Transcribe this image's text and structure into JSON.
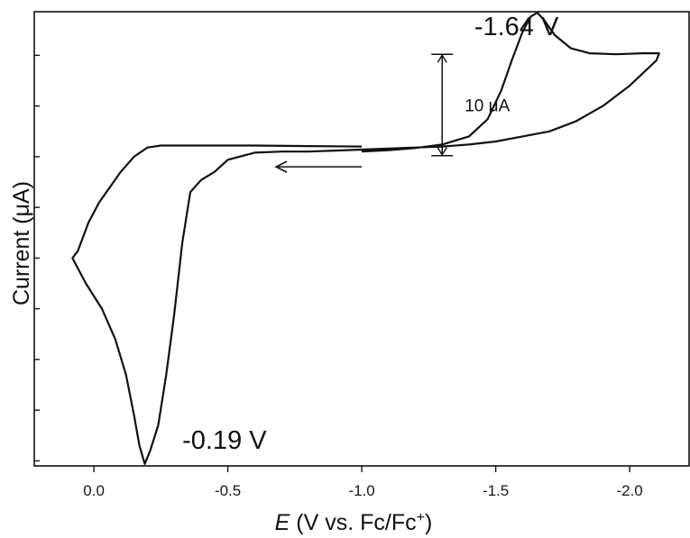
{
  "chart_data": {
    "type": "line",
    "title": "",
    "xlabel_italic": "E",
    "xlabel_rest": " (V vs. Fc/Fc",
    "xlabel_sup": "+",
    "xlabel_close": ")",
    "ylabel": "Current (μA)",
    "x_reversed": true,
    "xlim": [
      0.2225,
      -2.2218
    ],
    "ylim": [
      -23.0,
      21.8
    ],
    "grid": false,
    "x_ticks": [
      {
        "value": 0.0,
        "label": "0.0"
      },
      {
        "value": -0.5,
        "label": "-0.5"
      },
      {
        "value": -1.0,
        "label": "-1.0"
      },
      {
        "value": -1.5,
        "label": "-1.5"
      },
      {
        "value": -2.0,
        "label": "-2.0"
      }
    ],
    "y_ticks_unlabeled": [
      17.5,
      12.5,
      7.5,
      2.5,
      -2.5,
      -7.5,
      -12.5,
      -17.5,
      -22.5
    ],
    "series": [
      {
        "name": "",
        "color": "#111111",
        "x": [
          -1.0,
          -1.1,
          -1.2,
          -1.3,
          -1.4,
          -1.47,
          -1.52,
          -1.56,
          -1.6,
          -1.63,
          -1.655,
          -1.68,
          -1.72,
          -1.78,
          -1.85,
          -1.95,
          -2.05,
          -2.11,
          -2.1,
          -2.0,
          -1.9,
          -1.8,
          -1.7,
          -1.6,
          -1.5,
          -1.4,
          -1.3,
          -1.2,
          -1.1,
          -1.0,
          -0.9,
          -0.8,
          -0.7,
          -0.6,
          -0.5,
          -0.45,
          -0.4,
          -0.36,
          -0.33,
          -0.3,
          -0.27,
          -0.24,
          -0.21,
          -0.19,
          -0.17,
          -0.15,
          -0.12,
          -0.08,
          -0.03,
          0.03,
          0.08,
          0.06,
          0.02,
          -0.02,
          -0.06,
          -0.1,
          -0.15,
          -0.2,
          -0.25,
          -0.3,
          -0.35,
          -0.4,
          -0.5,
          -0.6,
          -0.8,
          -1.0
        ],
        "y": [
          8.0,
          8.15,
          8.35,
          8.7,
          9.5,
          11.2,
          14.0,
          17.0,
          19.8,
          21.3,
          21.7,
          21.0,
          19.5,
          18.2,
          17.7,
          17.6,
          17.7,
          17.7,
          17.0,
          14.5,
          12.5,
          11.0,
          10.0,
          9.5,
          9.0,
          8.7,
          8.5,
          8.4,
          8.3,
          8.2,
          8.1,
          8.0,
          8.0,
          7.9,
          7.2,
          6.0,
          5.2,
          4.0,
          -1.0,
          -8.0,
          -14.0,
          -19.0,
          -21.5,
          -22.8,
          -21.0,
          -18.0,
          -14.0,
          -10.5,
          -7.5,
          -5.0,
          -2.5,
          -1.8,
          1.0,
          3.0,
          4.5,
          6.0,
          7.5,
          8.4,
          8.6,
          8.6,
          8.6,
          8.6,
          8.6,
          8.6,
          8.55,
          8.5
        ]
      }
    ],
    "annotations": [
      {
        "text": "-1.64 V",
        "x": -1.42,
        "y": 19.5
      },
      {
        "text": "-0.19 V",
        "x": -0.33,
        "y": -21.3
      }
    ],
    "scan_arrow": {
      "from_x": -1.0,
      "to_x": -0.68,
      "y": 6.5
    },
    "scale_bar": {
      "label": "10 μA",
      "value": 10,
      "x": -1.3,
      "y_top": 17.6,
      "y_bottom": 7.6
    },
    "legend": "none"
  }
}
